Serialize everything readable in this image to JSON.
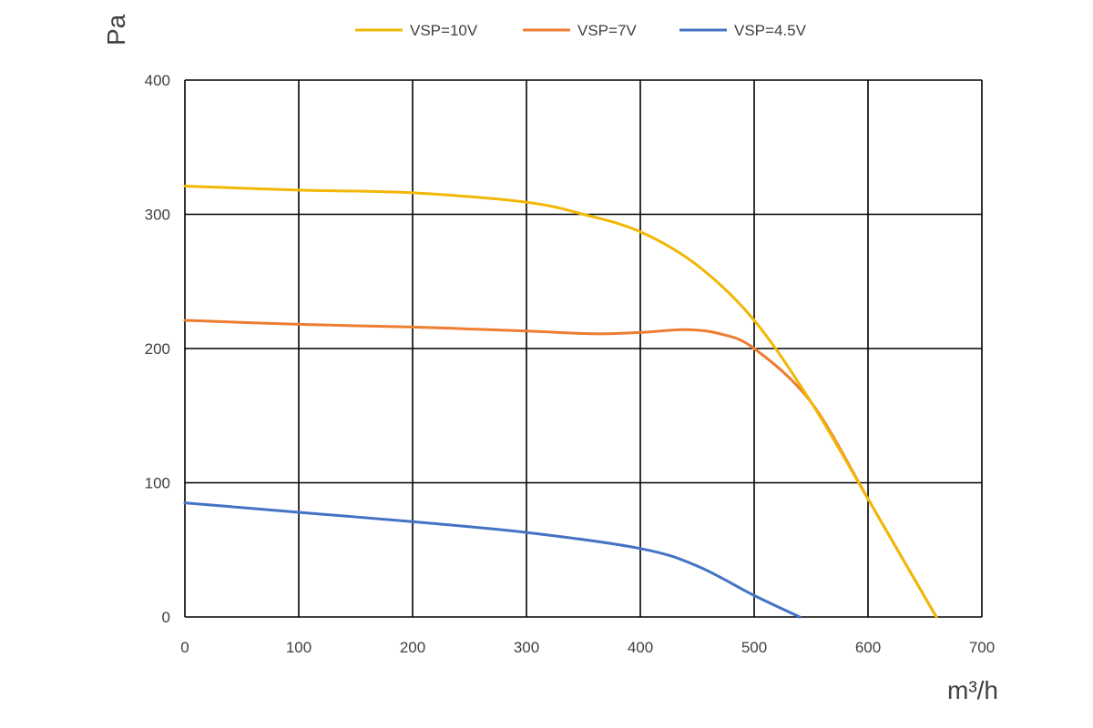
{
  "chart_data": {
    "type": "line",
    "title": "",
    "xlabel": "m³/h",
    "ylabel": "Pa",
    "xlim": [
      0,
      700
    ],
    "ylim": [
      0,
      400
    ],
    "x_ticks": [
      0,
      100,
      200,
      300,
      400,
      500,
      600,
      700
    ],
    "y_ticks": [
      0,
      100,
      200,
      300,
      400
    ],
    "grid": true,
    "legend_position": "top",
    "series": [
      {
        "name": "VSP=10V",
        "color": "#F2B705",
        "points": [
          [
            0,
            321
          ],
          [
            100,
            318
          ],
          [
            200,
            316
          ],
          [
            300,
            309
          ],
          [
            350,
            300
          ],
          [
            400,
            287
          ],
          [
            450,
            262
          ],
          [
            500,
            221
          ],
          [
            550,
            160
          ],
          [
            600,
            88
          ],
          [
            630,
            44
          ],
          [
            660,
            0
          ]
        ]
      },
      {
        "name": "VSP=7V",
        "color": "#ED7D31",
        "points": [
          [
            0,
            221
          ],
          [
            100,
            218
          ],
          [
            200,
            216
          ],
          [
            300,
            213
          ],
          [
            360,
            211
          ],
          [
            400,
            212
          ],
          [
            440,
            214
          ],
          [
            470,
            211
          ],
          [
            500,
            200
          ],
          [
            550,
            160
          ],
          [
            600,
            88
          ],
          [
            630,
            44
          ],
          [
            660,
            0
          ]
        ]
      },
      {
        "name": "VSP=4.5V",
        "color": "#4472C4",
        "points": [
          [
            0,
            85
          ],
          [
            100,
            78
          ],
          [
            200,
            71
          ],
          [
            300,
            63
          ],
          [
            400,
            51
          ],
          [
            450,
            38
          ],
          [
            500,
            16
          ],
          [
            540,
            0
          ]
        ]
      }
    ]
  }
}
